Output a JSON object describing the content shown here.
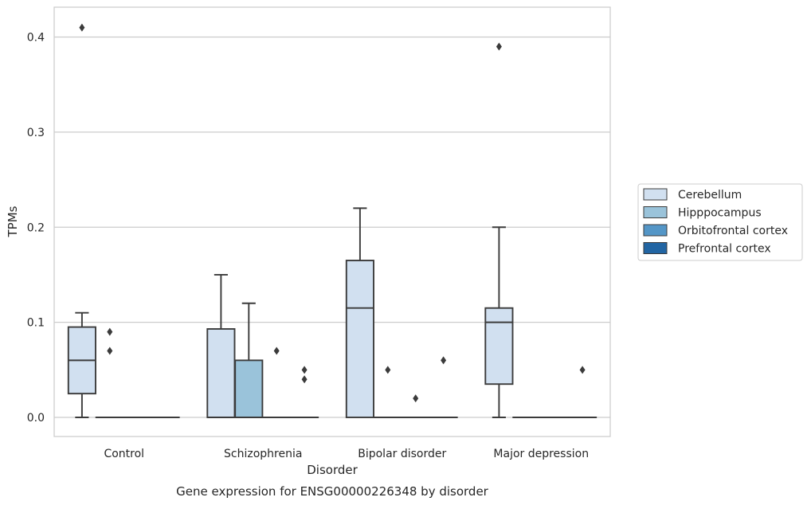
{
  "chart_data": {
    "type": "box",
    "xlabel": "Disorder",
    "ylabel": "TPMs",
    "caption": "Gene expression for ENSG00000226348 by disorder",
    "categories": [
      "Control",
      "Schizophrenia",
      "Bipolar disorder",
      "Major depression"
    ],
    "ylim": [
      -0.02,
      0.43
    ],
    "yticks": [
      0.0,
      0.1,
      0.2,
      0.3,
      0.4
    ],
    "ytick_labels": [
      "0.0",
      "0.1",
      "0.2",
      "0.3",
      "0.4"
    ],
    "grid": true,
    "legend": {
      "placement": "right",
      "entries": [
        "Cerebellum",
        "Hipppocampus",
        "Orbitofrontal cortex",
        "Prefrontal cortex"
      ]
    },
    "series": [
      {
        "name": "Cerebellum",
        "color": "#d1e0f0",
        "boxes": [
          {
            "category": "Control",
            "whislo": 0.0,
            "q1": 0.025,
            "med": 0.06,
            "q3": 0.095,
            "whishi": 0.11,
            "fliers": [
              0.41
            ]
          },
          {
            "category": "Schizophrenia",
            "whislo": 0.0,
            "q1": 0.0,
            "med": 0.0,
            "q3": 0.093,
            "whishi": 0.15,
            "fliers": []
          },
          {
            "category": "Bipolar disorder",
            "whislo": 0.0,
            "q1": 0.0,
            "med": 0.115,
            "q3": 0.165,
            "whishi": 0.22,
            "fliers": []
          },
          {
            "category": "Major depression",
            "whislo": 0.0,
            "q1": 0.035,
            "med": 0.1,
            "q3": 0.115,
            "whishi": 0.2,
            "fliers": [
              0.39
            ]
          }
        ]
      },
      {
        "name": "Hipppocampus",
        "color": "#9ac3da",
        "boxes": [
          {
            "category": "Control",
            "whislo": 0.0,
            "q1": 0.0,
            "med": 0.0,
            "q3": 0.0,
            "whishi": 0.0,
            "fliers": [
              0.09,
              0.07
            ]
          },
          {
            "category": "Schizophrenia",
            "whislo": 0.0,
            "q1": 0.0,
            "med": 0.0,
            "q3": 0.06,
            "whishi": 0.12,
            "fliers": []
          },
          {
            "category": "Bipolar disorder",
            "whislo": 0.0,
            "q1": 0.0,
            "med": 0.0,
            "q3": 0.0,
            "whishi": 0.0,
            "fliers": [
              0.05
            ]
          },
          {
            "category": "Major depression",
            "whislo": 0.0,
            "q1": 0.0,
            "med": 0.0,
            "q3": 0.0,
            "whishi": 0.0,
            "fliers": []
          }
        ]
      },
      {
        "name": "Orbitofrontal cortex",
        "color": "#5496c7",
        "boxes": [
          {
            "category": "Control",
            "whislo": 0.0,
            "q1": 0.0,
            "med": 0.0,
            "q3": 0.0,
            "whishi": 0.0,
            "fliers": []
          },
          {
            "category": "Schizophrenia",
            "whislo": 0.0,
            "q1": 0.0,
            "med": 0.0,
            "q3": 0.0,
            "whishi": 0.0,
            "fliers": [
              0.07
            ]
          },
          {
            "category": "Bipolar disorder",
            "whislo": 0.0,
            "q1": 0.0,
            "med": 0.0,
            "q3": 0.0,
            "whishi": 0.0,
            "fliers": [
              0.02
            ]
          },
          {
            "category": "Major depression",
            "whislo": 0.0,
            "q1": 0.0,
            "med": 0.0,
            "q3": 0.0,
            "whishi": 0.0,
            "fliers": []
          }
        ]
      },
      {
        "name": "Prefrontal cortex",
        "color": "#2265a3",
        "boxes": [
          {
            "category": "Control",
            "whislo": 0.0,
            "q1": 0.0,
            "med": 0.0,
            "q3": 0.0,
            "whishi": 0.0,
            "fliers": []
          },
          {
            "category": "Schizophrenia",
            "whislo": 0.0,
            "q1": 0.0,
            "med": 0.0,
            "q3": 0.0,
            "whishi": 0.0,
            "fliers": [
              0.05,
              0.04
            ]
          },
          {
            "category": "Bipolar disorder",
            "whislo": 0.0,
            "q1": 0.0,
            "med": 0.0,
            "q3": 0.0,
            "whishi": 0.0,
            "fliers": [
              0.06
            ]
          },
          {
            "category": "Major depression",
            "whislo": 0.0,
            "q1": 0.0,
            "med": 0.0,
            "q3": 0.0,
            "whishi": 0.0,
            "fliers": [
              0.05
            ]
          }
        ]
      }
    ],
    "colors": {
      "grid": "#cccccc",
      "frame": "#cccccc",
      "line": "#3b3b3b",
      "text": "#262626"
    }
  }
}
